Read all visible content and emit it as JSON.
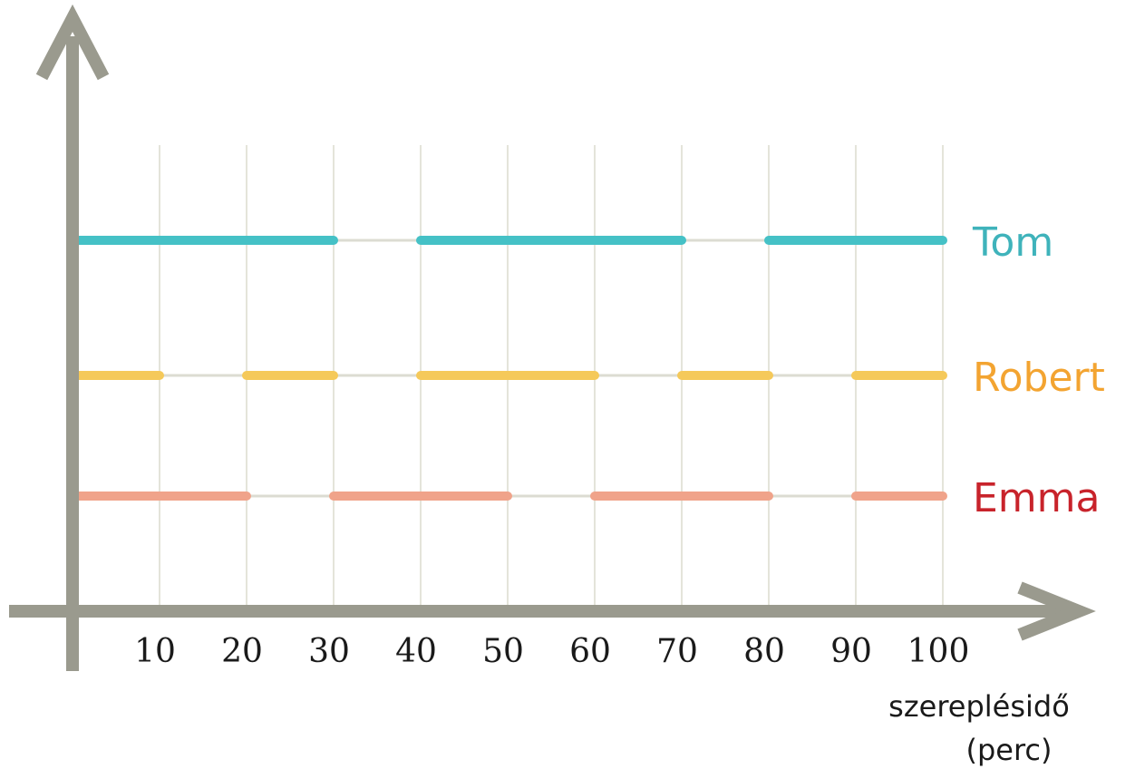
{
  "chart_data": {
    "type": "timeline",
    "x": [
      10,
      20,
      30,
      40,
      50,
      60,
      70,
      80,
      90,
      100
    ],
    "tick_labels": [
      "10",
      "20",
      "30",
      "40",
      "50",
      "60",
      "70",
      "80",
      "90",
      "100"
    ],
    "xlim": [
      0,
      100
    ],
    "xlabel": "szereplésidő",
    "xlabel_unit": "(perc)",
    "ylabel": "",
    "grid": true,
    "colors": {
      "axis": "#9a9a8e",
      "grid": "#e4e4da",
      "baseline": "#dcdcd2"
    },
    "series": [
      {
        "name": "Tom",
        "color": "#45c1c6",
        "label_color": "#3fb3bb",
        "segments": [
          [
            0,
            30
          ],
          [
            40,
            70
          ],
          [
            80,
            100
          ]
        ]
      },
      {
        "name": "Robert",
        "color": "#f5c95a",
        "label_color": "#f3a431",
        "segments": [
          [
            0,
            10
          ],
          [
            20,
            30
          ],
          [
            40,
            60
          ],
          [
            70,
            80
          ],
          [
            90,
            100
          ]
        ]
      },
      {
        "name": "Emma",
        "color": "#f0a38a",
        "label_color": "#c8232b",
        "segments": [
          [
            0,
            20
          ],
          [
            30,
            50
          ],
          [
            60,
            80
          ],
          [
            90,
            100
          ]
        ]
      }
    ]
  }
}
